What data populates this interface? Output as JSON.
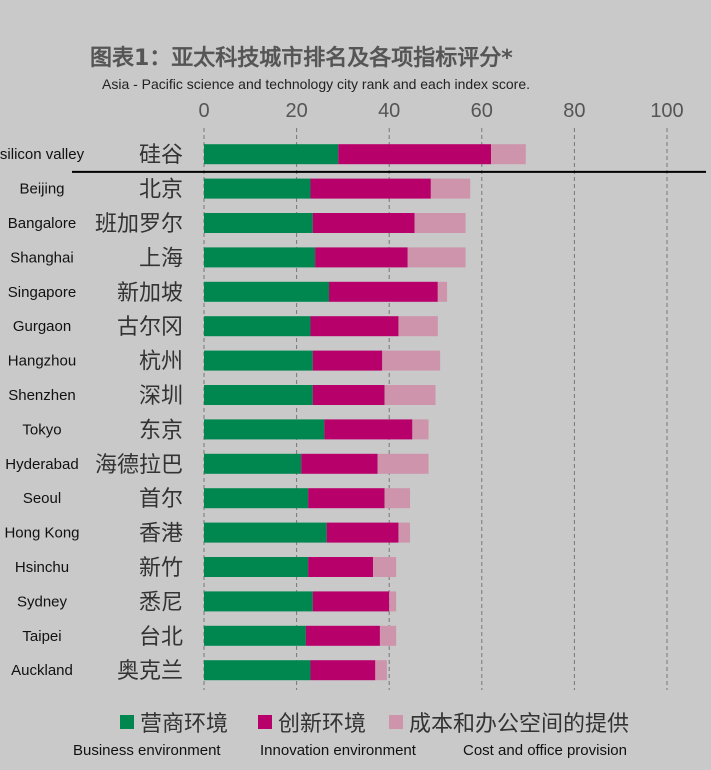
{
  "title_cn": "图表1：亚太科技城市排名及各项指标评分*",
  "title_en": "Asia - Pacific science and technology city rank and each index score.",
  "chart_data": {
    "type": "bar",
    "orientation": "horizontal",
    "stacked": true,
    "xlim": [
      0,
      100
    ],
    "xticks": [
      "0",
      "20",
      "40",
      "60",
      "80",
      "100"
    ],
    "grid": "dashed vertical",
    "categories_en": [
      "silicon valley",
      "Beijing",
      "Bangalore",
      "Shanghai",
      "Singapore",
      "Gurgaon",
      "Hangzhou",
      "Shenzhen",
      "Tokyo",
      "Hyderabad",
      "Seoul",
      "Hong Kong",
      "Hsinchu",
      "Sydney",
      "Taipei",
      "Auckland"
    ],
    "categories_cn": [
      "硅谷",
      "北京",
      "班加罗尔",
      "上海",
      "新加坡",
      "古尔冈",
      "杭州",
      "深圳",
      "东京",
      "海德拉巴",
      "首尔",
      "香港",
      "新竹",
      "悉尼",
      "台北",
      "奥克兰"
    ],
    "series": [
      {
        "name": "营商环境",
        "name_en": "Business environment",
        "color": "#00874f",
        "values": [
          29,
          23,
          23.5,
          24,
          27,
          23,
          23.5,
          23.5,
          26,
          21,
          22.5,
          26.5,
          22.5,
          23.5,
          22,
          23
        ]
      },
      {
        "name": "创新环境",
        "name_en": "Innovation environment",
        "color": "#b8006b",
        "values": [
          33,
          26,
          22,
          20,
          23.5,
          19,
          15,
          15.5,
          19,
          16.5,
          16.5,
          15.5,
          14,
          16.5,
          16,
          14
        ]
      },
      {
        "name": "成本和办公空间的提供",
        "name_en": "Cost and office provision",
        "color": "#cd94ac",
        "values": [
          7.5,
          8.5,
          11,
          12.5,
          2,
          8.5,
          12.5,
          11,
          3.5,
          11,
          5.5,
          2.5,
          5,
          1.5,
          3.5,
          2.5
        ]
      }
    ]
  }
}
